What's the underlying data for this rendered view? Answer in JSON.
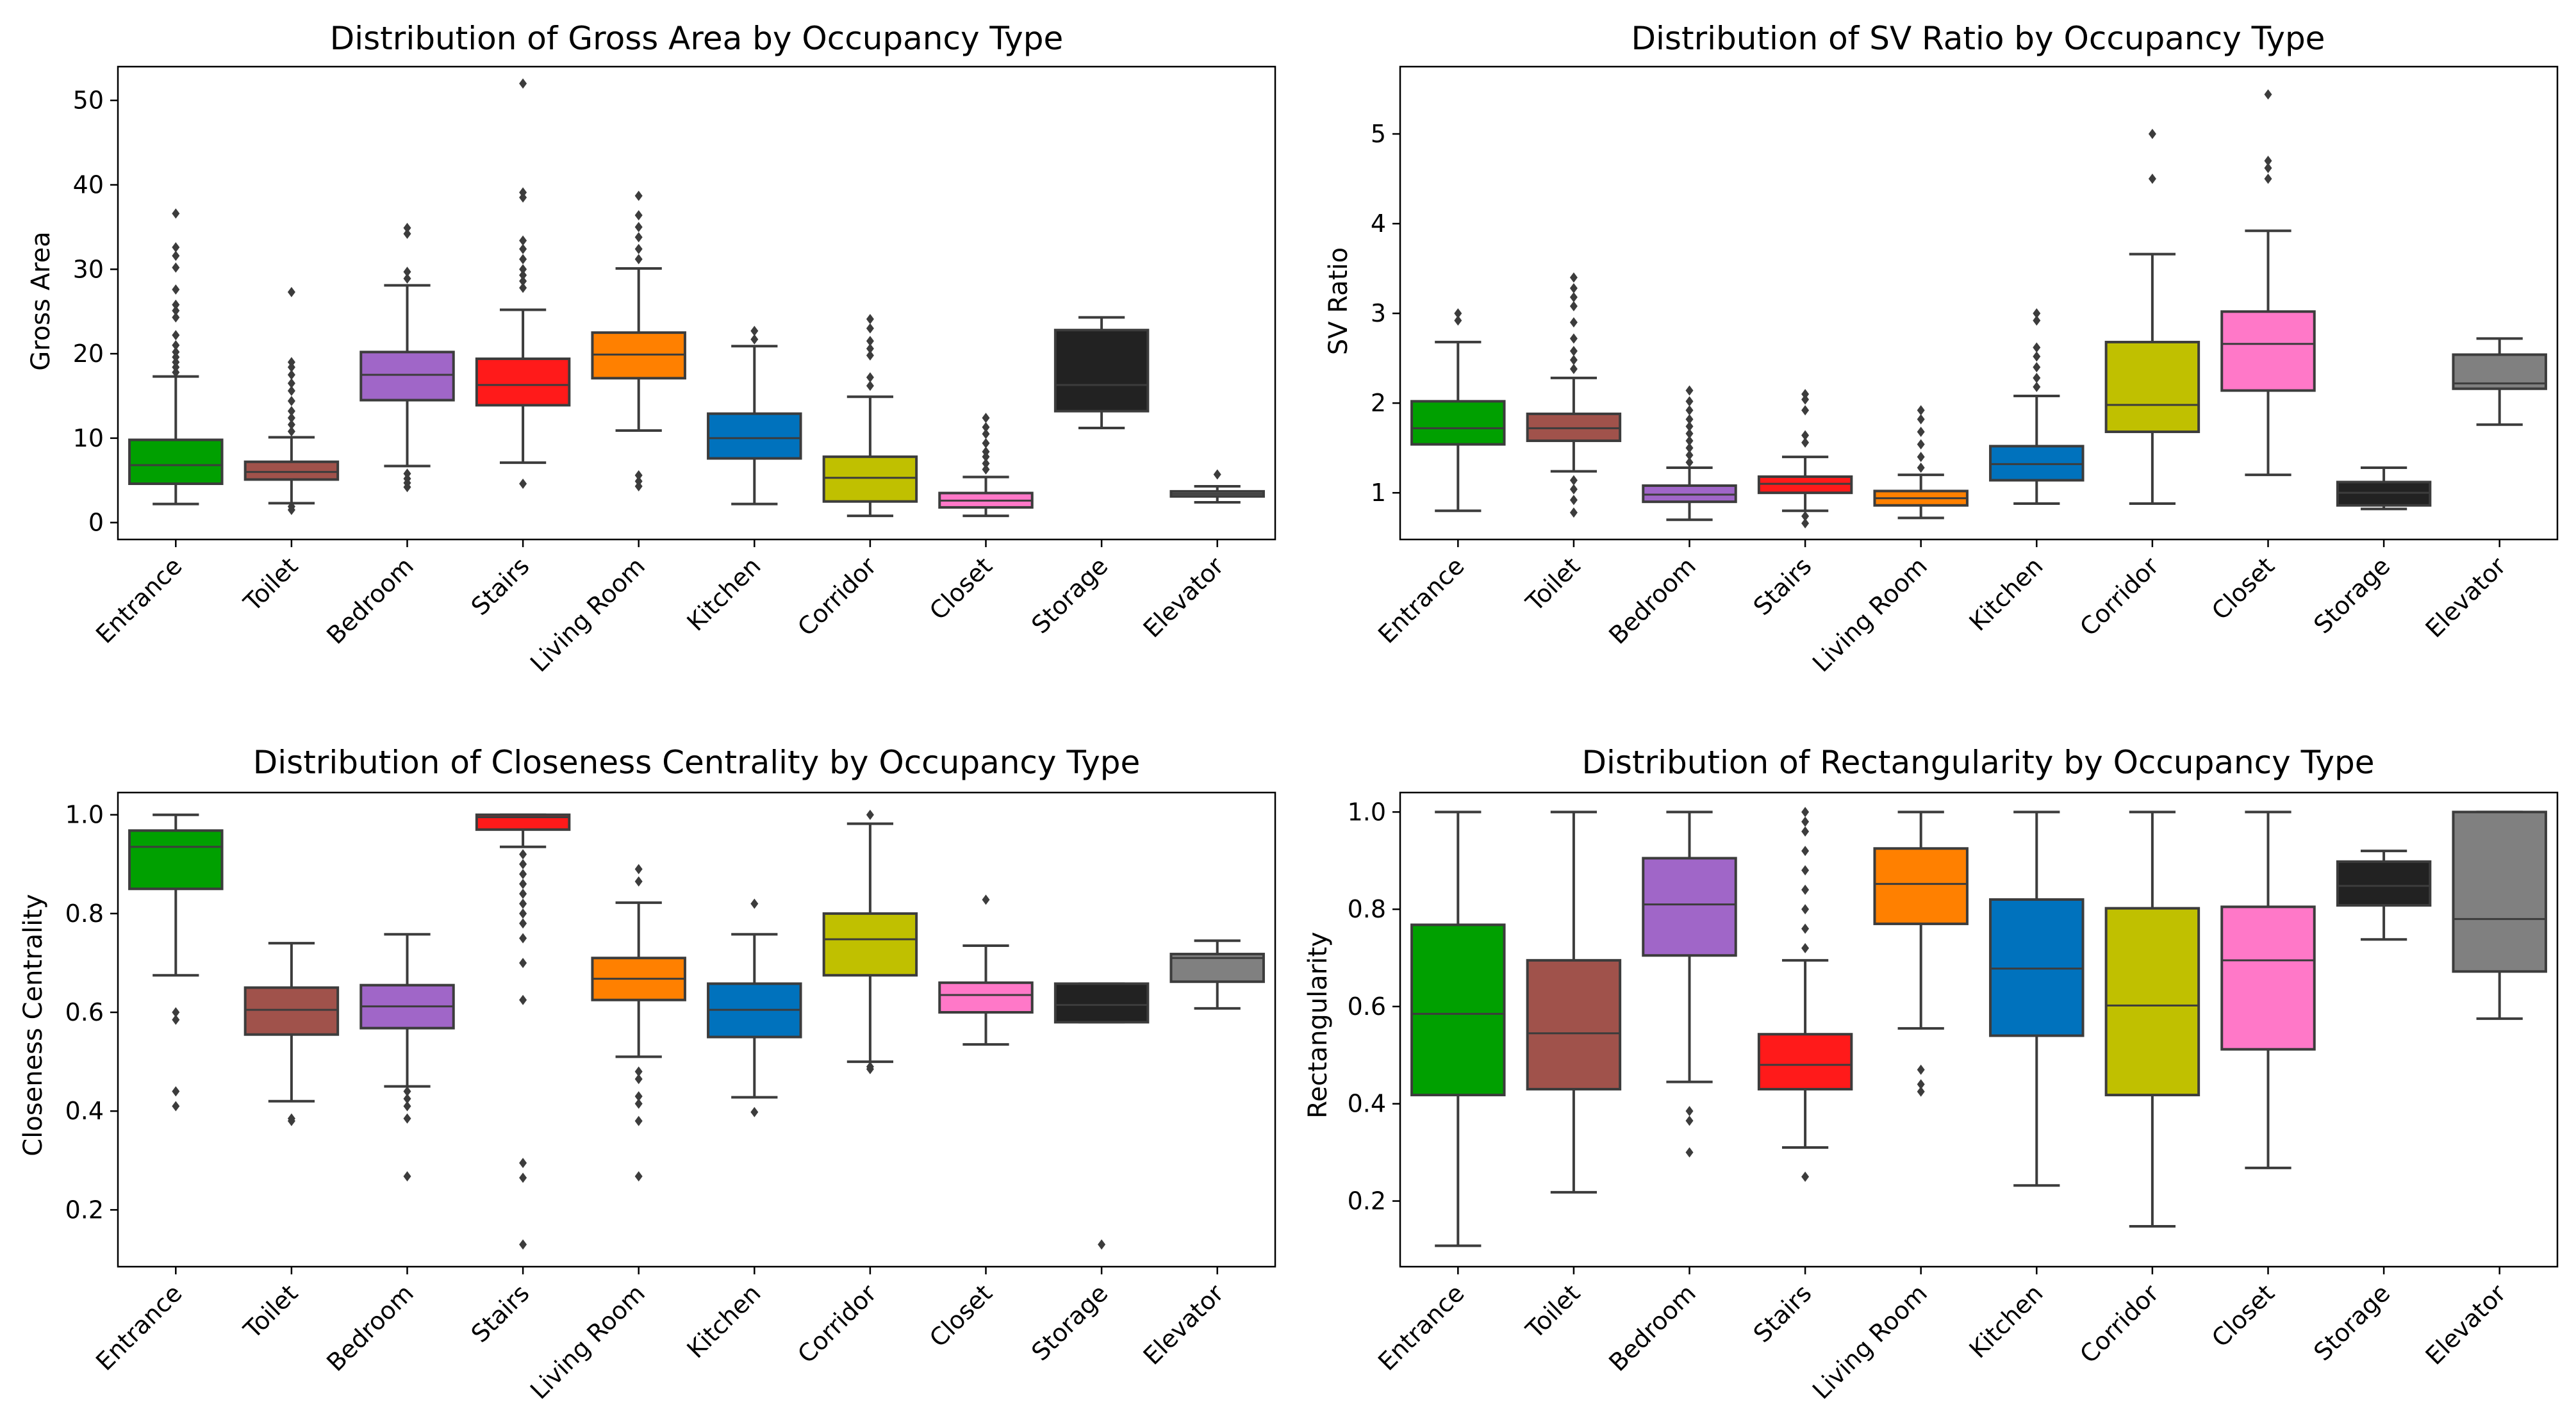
{
  "chart_data": [
    {
      "type": "box",
      "title": "Distribution of Gross Area by Occupancy Type",
      "xlabel": "",
      "ylabel": "Gross Area",
      "ylim": [
        -2,
        54
      ],
      "yticks": [
        0,
        10,
        20,
        30,
        40,
        50
      ],
      "categories": [
        "Entrance",
        "Toilet",
        "Bedroom",
        "Stairs",
        "Living Room",
        "Kitchen",
        "Corridor",
        "Closet",
        "Storage",
        "Elevator"
      ],
      "boxes": [
        {
          "whisker_low": 2.2,
          "q1": 4.6,
          "median": 6.8,
          "q3": 9.8,
          "whisker_high": 17.3,
          "outliers": [
            17.8,
            18.4,
            19.0,
            19.6,
            20.2,
            21.0,
            22.2,
            24.3,
            25.1,
            25.8,
            27.6,
            30.2,
            31.6,
            32.6,
            36.6
          ]
        },
        {
          "whisker_low": 2.3,
          "q1": 5.1,
          "median": 6.0,
          "q3": 7.2,
          "whisker_high": 10.1,
          "outliers": [
            1.5,
            1.9,
            10.8,
            11.6,
            12.4,
            13.2,
            14.4,
            15.6,
            16.5,
            17.5,
            18.4,
            19.0,
            27.3
          ]
        },
        {
          "whisker_low": 6.7,
          "q1": 14.5,
          "median": 17.5,
          "q3": 20.2,
          "whisker_high": 28.1,
          "outliers": [
            4.2,
            4.7,
            5.2,
            5.8,
            28.9,
            29.7,
            34.2,
            34.9
          ]
        },
        {
          "whisker_low": 7.1,
          "q1": 13.9,
          "median": 16.3,
          "q3": 19.4,
          "whisker_high": 25.2,
          "outliers": [
            4.6,
            27.8,
            28.6,
            29.3,
            30.0,
            31.2,
            32.4,
            33.4,
            38.5,
            39.1,
            52.0
          ]
        },
        {
          "whisker_low": 10.9,
          "q1": 17.1,
          "median": 19.9,
          "q3": 22.5,
          "whisker_high": 30.1,
          "outliers": [
            4.3,
            4.9,
            5.6,
            31.2,
            32.4,
            33.8,
            35.0,
            36.4,
            38.7
          ]
        },
        {
          "whisker_low": 2.2,
          "q1": 7.6,
          "median": 10.0,
          "q3": 12.9,
          "whisker_high": 20.9,
          "outliers": [
            21.7,
            22.7
          ]
        },
        {
          "whisker_low": 0.8,
          "q1": 2.5,
          "median": 5.3,
          "q3": 7.8,
          "whisker_high": 14.9,
          "outliers": [
            16.2,
            17.2,
            19.8,
            20.6,
            21.5,
            23.0,
            24.1
          ]
        },
        {
          "whisker_low": 0.8,
          "q1": 1.8,
          "median": 2.6,
          "q3": 3.5,
          "whisker_high": 5.4,
          "outliers": [
            6.3,
            7.0,
            7.8,
            8.4,
            9.4,
            10.5,
            11.3,
            12.4
          ]
        },
        {
          "whisker_low": 11.2,
          "q1": 13.2,
          "median": 16.3,
          "q3": 22.8,
          "whisker_high": 24.3,
          "outliers": []
        },
        {
          "whisker_low": 2.4,
          "q1": 3.1,
          "median": 3.4,
          "q3": 3.7,
          "whisker_high": 4.3,
          "outliers": [
            5.7
          ]
        }
      ]
    },
    {
      "type": "box",
      "title": "Distribution of SV Ratio by Occupancy Type",
      "xlabel": "",
      "ylabel": "SV Ratio",
      "ylim": [
        0.48,
        5.75
      ],
      "yticks": [
        1,
        2,
        3,
        4,
        5
      ],
      "categories": [
        "Entrance",
        "Toilet",
        "Bedroom",
        "Stairs",
        "Living Room",
        "Kitchen",
        "Corridor",
        "Closet",
        "Storage",
        "Elevator"
      ],
      "boxes": [
        {
          "whisker_low": 0.8,
          "q1": 1.54,
          "median": 1.72,
          "q3": 2.02,
          "whisker_high": 2.68,
          "outliers": [
            2.92,
            3.0
          ]
        },
        {
          "whisker_low": 1.24,
          "q1": 1.58,
          "median": 1.72,
          "q3": 1.88,
          "whisker_high": 2.28,
          "outliers": [
            0.78,
            0.92,
            1.04,
            1.14,
            2.38,
            2.48,
            2.58,
            2.72,
            2.9,
            3.08,
            3.18,
            3.28,
            3.4
          ]
        },
        {
          "whisker_low": 0.7,
          "q1": 0.9,
          "median": 0.98,
          "q3": 1.08,
          "whisker_high": 1.28,
          "outliers": [
            1.34,
            1.42,
            1.5,
            1.58,
            1.66,
            1.74,
            1.82,
            1.92,
            2.02,
            2.14
          ]
        },
        {
          "whisker_low": 0.8,
          "q1": 1.0,
          "median": 1.1,
          "q3": 1.18,
          "whisker_high": 1.4,
          "outliers": [
            0.66,
            0.74,
            1.56,
            1.64,
            1.92,
            2.04,
            2.1
          ]
        },
        {
          "whisker_low": 0.72,
          "q1": 0.86,
          "median": 0.94,
          "q3": 1.02,
          "whisker_high": 1.2,
          "outliers": [
            1.28,
            1.4,
            1.54,
            1.68,
            1.82,
            1.92
          ]
        },
        {
          "whisker_low": 0.88,
          "q1": 1.14,
          "median": 1.32,
          "q3": 1.52,
          "whisker_high": 2.08,
          "outliers": [
            2.18,
            2.28,
            2.4,
            2.52,
            2.62,
            2.92,
            3.0
          ]
        },
        {
          "whisker_low": 0.88,
          "q1": 1.68,
          "median": 1.98,
          "q3": 2.68,
          "whisker_high": 3.66,
          "outliers": [
            4.5,
            5.0
          ]
        },
        {
          "whisker_low": 1.2,
          "q1": 2.14,
          "median": 2.66,
          "q3": 3.02,
          "whisker_high": 3.92,
          "outliers": [
            4.5,
            4.62,
            4.7,
            5.44
          ]
        },
        {
          "whisker_low": 0.82,
          "q1": 0.86,
          "median": 1.0,
          "q3": 1.12,
          "whisker_high": 1.28,
          "outliers": []
        },
        {
          "whisker_low": 1.76,
          "q1": 2.16,
          "median": 2.22,
          "q3": 2.54,
          "whisker_high": 2.72,
          "outliers": []
        }
      ]
    },
    {
      "type": "box",
      "title": "Distribution of Closeness Centrality by Occupancy Type",
      "xlabel": "",
      "ylabel": "Closeness Centrality",
      "ylim": [
        0.085,
        1.045
      ],
      "yticks": [
        0.2,
        0.4,
        0.6,
        0.8,
        1.0
      ],
      "categories": [
        "Entrance",
        "Toilet",
        "Bedroom",
        "Stairs",
        "Living Room",
        "Kitchen",
        "Corridor",
        "Closet",
        "Storage",
        "Elevator"
      ],
      "boxes": [
        {
          "whisker_low": 0.675,
          "q1": 0.85,
          "median": 0.935,
          "q3": 0.968,
          "whisker_high": 1.0,
          "outliers": [
            0.41,
            0.44,
            0.585,
            0.6
          ]
        },
        {
          "whisker_low": 0.42,
          "q1": 0.555,
          "median": 0.605,
          "q3": 0.65,
          "whisker_high": 0.74,
          "outliers": [
            0.38,
            0.385
          ]
        },
        {
          "whisker_low": 0.45,
          "q1": 0.568,
          "median": 0.612,
          "q3": 0.655,
          "whisker_high": 0.758,
          "outliers": [
            0.268,
            0.385,
            0.41,
            0.425,
            0.44
          ]
        },
        {
          "whisker_low": 0.935,
          "q1": 0.97,
          "median": 0.995,
          "q3": 1.0,
          "whisker_high": 1.0,
          "outliers": [
            0.13,
            0.265,
            0.295,
            0.625,
            0.7,
            0.75,
            0.78,
            0.8,
            0.82,
            0.84,
            0.86,
            0.88,
            0.9,
            0.92
          ]
        },
        {
          "whisker_low": 0.51,
          "q1": 0.625,
          "median": 0.668,
          "q3": 0.71,
          "whisker_high": 0.822,
          "outliers": [
            0.268,
            0.38,
            0.415,
            0.43,
            0.465,
            0.48,
            0.865,
            0.89
          ]
        },
        {
          "whisker_low": 0.428,
          "q1": 0.55,
          "median": 0.605,
          "q3": 0.658,
          "whisker_high": 0.758,
          "outliers": [
            0.398,
            0.82
          ]
        },
        {
          "whisker_low": 0.5,
          "q1": 0.675,
          "median": 0.748,
          "q3": 0.8,
          "whisker_high": 0.982,
          "outliers": [
            0.485,
            0.49,
            1.0
          ]
        },
        {
          "whisker_low": 0.535,
          "q1": 0.6,
          "median": 0.635,
          "q3": 0.66,
          "whisker_high": 0.735,
          "outliers": [
            0.828
          ]
        },
        {
          "whisker_low": 0.58,
          "q1": 0.58,
          "median": 0.615,
          "q3": 0.658,
          "whisker_high": 0.658,
          "outliers": [
            0.13
          ]
        },
        {
          "whisker_low": 0.608,
          "q1": 0.662,
          "median": 0.71,
          "q3": 0.718,
          "whisker_high": 0.745,
          "outliers": []
        }
      ]
    },
    {
      "type": "box",
      "title": "Distribution of Rectangularity by Occupancy Type",
      "xlabel": "",
      "ylabel": "Rectangularity",
      "ylim": [
        0.065,
        1.04
      ],
      "yticks": [
        0.2,
        0.4,
        0.6,
        0.8,
        1.0
      ],
      "categories": [
        "Entrance",
        "Toilet",
        "Bedroom",
        "Stairs",
        "Living Room",
        "Kitchen",
        "Corridor",
        "Closet",
        "Storage",
        "Elevator"
      ],
      "boxes": [
        {
          "whisker_low": 0.108,
          "q1": 0.418,
          "median": 0.585,
          "q3": 0.768,
          "whisker_high": 1.0,
          "outliers": []
        },
        {
          "whisker_low": 0.218,
          "q1": 0.43,
          "median": 0.545,
          "q3": 0.695,
          "whisker_high": 1.0,
          "outliers": []
        },
        {
          "whisker_low": 0.445,
          "q1": 0.705,
          "median": 0.81,
          "q3": 0.905,
          "whisker_high": 1.0,
          "outliers": [
            0.3,
            0.365,
            0.385
          ]
        },
        {
          "whisker_low": 0.31,
          "q1": 0.43,
          "median": 0.48,
          "q3": 0.543,
          "whisker_high": 0.695,
          "outliers": [
            0.25,
            0.72,
            0.76,
            0.8,
            0.84,
            0.88,
            0.92,
            0.96,
            0.98,
            1.0
          ]
        },
        {
          "whisker_low": 0.555,
          "q1": 0.77,
          "median": 0.852,
          "q3": 0.925,
          "whisker_high": 1.0,
          "outliers": [
            0.425,
            0.44,
            0.47
          ]
        },
        {
          "whisker_low": 0.232,
          "q1": 0.54,
          "median": 0.678,
          "q3": 0.82,
          "whisker_high": 1.0,
          "outliers": []
        },
        {
          "whisker_low": 0.148,
          "q1": 0.418,
          "median": 0.602,
          "q3": 0.802,
          "whisker_high": 1.0,
          "outliers": []
        },
        {
          "whisker_low": 0.268,
          "q1": 0.512,
          "median": 0.695,
          "q3": 0.805,
          "whisker_high": 1.0,
          "outliers": []
        },
        {
          "whisker_low": 0.738,
          "q1": 0.808,
          "median": 0.848,
          "q3": 0.898,
          "whisker_high": 0.92,
          "outliers": []
        },
        {
          "whisker_low": 0.575,
          "q1": 0.672,
          "median": 0.78,
          "q3": 1.0,
          "whisker_high": 1.0,
          "outliers": []
        }
      ]
    }
  ],
  "category_colors": [
    "#00a000",
    "#a0524b",
    "#a066c8",
    "#ff1a1a",
    "#ff8000",
    "#0072bd",
    "#c0c000",
    "#ff78c8",
    "#222222",
    "#808080"
  ],
  "outline_color": "#3c3c3c"
}
